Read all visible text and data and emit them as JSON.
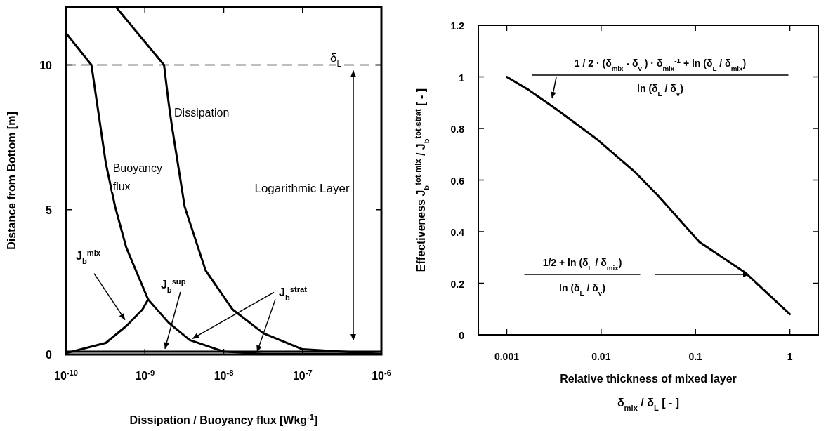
{
  "chart_data": [
    {
      "type": "line",
      "xlabel": "Dissipation  /  Buoyancy flux   [Wkg$^{-1}$]",
      "ylabel": "Distance from Bottom   [m]",
      "log": "x",
      "xlim": [
        1e-10,
        1e-06
      ],
      "ylim": [
        0,
        12
      ],
      "xticks": [
        {
          "value": 1e-10,
          "label": "10$^{-10}$"
        },
        {
          "value": 1e-09,
          "label": "10$^{-9}$"
        },
        {
          "value": 1e-08,
          "label": "10$^{-8}$"
        },
        {
          "value": 1e-07,
          "label": "10$^{-7}$"
        },
        {
          "value": 1e-06,
          "label": "10$^{-6}$"
        }
      ],
      "yticks": [
        0,
        5,
        10
      ],
      "series": [
        {
          "name": "Dissipation",
          "color": "#000000",
          "x": [
            4.3e-10,
            1.75e-09,
            2e-09,
            2.2e-09,
            3.2e-09,
            5.9e-09,
            1.3e-08,
            3.2e-08,
            1e-07,
            9.6e-07
          ],
          "values": [
            12,
            10,
            8.7,
            7.9,
            5.1,
            2.9,
            1.55,
            0.73,
            0.18,
            0.02
          ]
        },
        {
          "name": "Buoyancy flux",
          "color": "#000000",
          "x": [
            1e-10,
            2.1e-10,
            3.2e-10,
            4.2e-10,
            5.8e-10,
            1.1e-09,
            2e-09,
            3.7e-09,
            1e-08,
            3.2e-08,
            1e-06
          ],
          "values": [
            11.1,
            10,
            6.6,
            5.1,
            3.7,
            1.9,
            1.1,
            0.5,
            0.1,
            0.02,
            0.02
          ]
        },
        {
          "color": "#000000",
          "x": [
            1e-10,
            3.2e-10,
            5.9e-10,
            9.3e-10,
            1.1e-09
          ],
          "values": [
            0.05,
            0.4,
            1.0,
            1.55,
            1.9
          ]
        },
        {
          "color": "#000000",
          "x": [
            1e-10,
            1e-06
          ],
          "values": [
            0.1,
            0.1
          ]
        }
      ],
      "ref_lines": [
        {
          "axis": "y",
          "value": 10,
          "label": "δ$_{L}$",
          "line_style": "dashed"
        }
      ],
      "annotations": [
        {
          "text": "J$_{b}$$^{mix}$",
          "x": 5.6e-10,
          "y": 1.1
        },
        {
          "text": "J$_{b}$$^{sup}$",
          "x": 1.8e-09,
          "y": 0.1
        },
        {
          "text": "J$_{b}$$^{strat}$",
          "x": 3.7e-09,
          "y": 0.5
        },
        "Logarithmic  Layer"
      ]
    },
    {
      "type": "line",
      "xlabel": "Relative  thickness  of  mixed  layer\nδ$_{mix}$ / δ$_{L}$  [ - ]",
      "ylabel": "Effectiveness    J$_{b}$$^{tot-mix}$ / J$_{b}$$^{tot-strat}$   [ - ]",
      "log": "x",
      "xlim": [
        0.0005,
        2
      ],
      "ylim": [
        0,
        1.2
      ],
      "xticks": [
        0.001,
        0.01,
        0.1,
        1
      ],
      "yticks": [
        0,
        0.2,
        0.4,
        0.6,
        0.8,
        1,
        1.2
      ],
      "series": [
        {
          "color": "#000000",
          "x": [
            0.001,
            0.0017,
            0.0035,
            0.0089,
            0.023,
            0.04,
            0.11,
            0.34,
            1
          ],
          "values": [
            1.0,
            0.95,
            0.87,
            0.76,
            0.63,
            0.54,
            0.36,
            0.24,
            0.08
          ]
        }
      ],
      "annotations": [
        "1 / 2 · (δ$_{mix}$ - δ$_{v}$ ) · δ$_{mix}$$^{-1}$  +  ln (δ$_{L}$ / δ$_{mix}$)",
        "ln (δ$_{L}$ / δ$_{v}$)",
        "1/2  +  ln (δ$_{L}$ / δ$_{mix}$)",
        "ln (δ$_{L}$ / δ$_{v}$)"
      ]
    }
  ]
}
